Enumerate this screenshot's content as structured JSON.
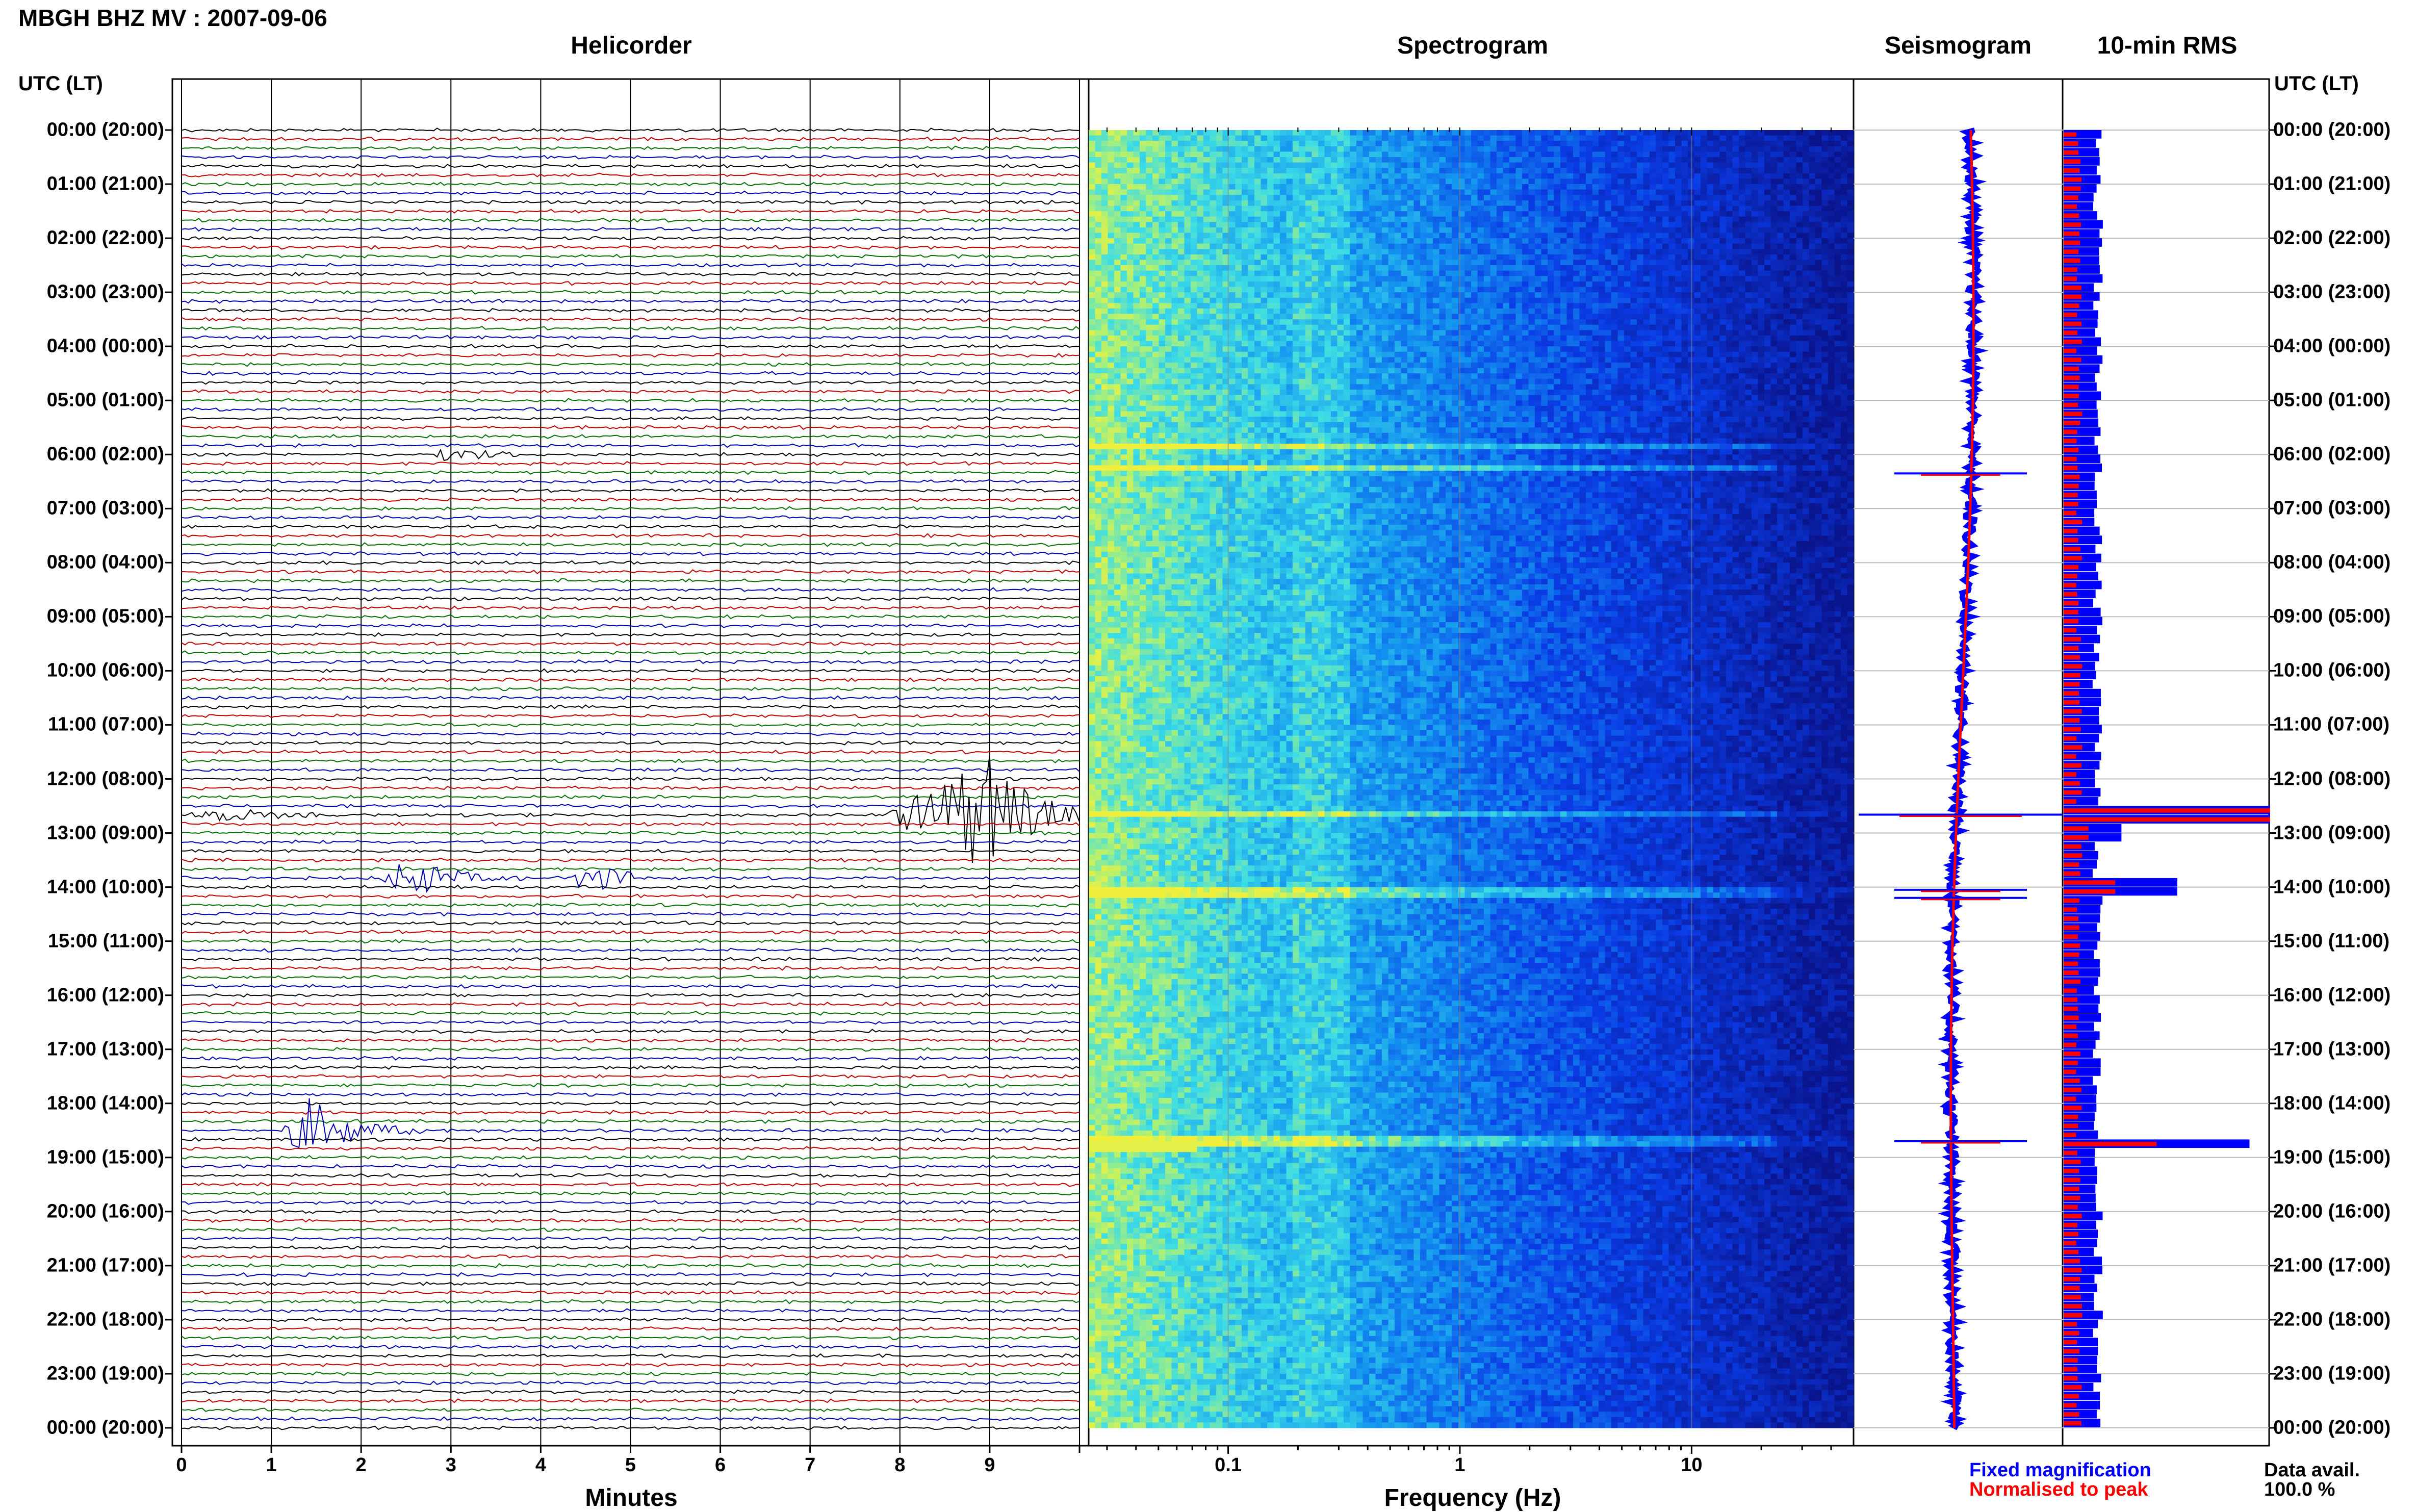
{
  "title": "MBGH BHZ MV : 2007-09-06",
  "panels": {
    "helicorder": "Helicorder",
    "spectrogram": "Spectrogram",
    "seismogram": "Seismogram",
    "rms": "10-min RMS"
  },
  "utc_header": "UTC (LT)",
  "time_labels": [
    "00:00 (20:00)",
    "01:00 (21:00)",
    "02:00 (22:00)",
    "03:00 (23:00)",
    "04:00 (00:00)",
    "05:00 (01:00)",
    "06:00 (02:00)",
    "07:00 (03:00)",
    "08:00 (04:00)",
    "09:00 (05:00)",
    "10:00 (06:00)",
    "11:00 (07:00)",
    "12:00 (08:00)",
    "13:00 (09:00)",
    "14:00 (10:00)",
    "15:00 (11:00)",
    "16:00 (12:00)",
    "17:00 (13:00)",
    "18:00 (14:00)",
    "19:00 (15:00)",
    "20:00 (16:00)",
    "21:00 (17:00)",
    "22:00 (18:00)",
    "23:00 (19:00)",
    "00:00 (20:00)"
  ],
  "minutes_ticks": [
    "0",
    "1",
    "2",
    "3",
    "4",
    "5",
    "6",
    "7",
    "8",
    "9"
  ],
  "minutes_label": "Minutes",
  "freq_ticks": [
    "0.1",
    "1",
    "10"
  ],
  "freq_label": "Frequency (Hz)",
  "legend": {
    "fixed": "Fixed magnification",
    "normalised": "Normalised to peak"
  },
  "data_avail": {
    "label": "Data avail.",
    "value": "100.0 %"
  },
  "colors": {
    "trace_cycle": [
      "#000000",
      "#c00000",
      "#007000",
      "#0000b0"
    ],
    "fixed": "#0000ff",
    "normalised": "#ff0000"
  },
  "chart_data": [
    {
      "type": "line",
      "name": "Helicorder",
      "xlabel": "Minutes",
      "xlim": [
        0,
        10
      ],
      "rows_per_hour": 6,
      "hours": 24,
      "row_minutes": 10,
      "events": [
        {
          "hour": 12,
          "row": 4,
          "start_min": 7.8,
          "end_min": 10.0,
          "peak_min": 9.0,
          "amp": 1.0
        },
        {
          "hour": 12,
          "row": 4,
          "start_min": 0.0,
          "end_min": 10.0,
          "peak_min": 0.5,
          "amp": 0.1
        },
        {
          "hour": 13,
          "row": 5,
          "start_min": 2.2,
          "end_min": 3.8,
          "peak_min": 2.5,
          "amp": 0.35
        },
        {
          "hour": 13,
          "row": 5,
          "start_min": 4.3,
          "end_min": 5.0,
          "peak_min": 4.5,
          "amp": 0.28
        },
        {
          "hour": 18,
          "row": 3,
          "start_min": 1.1,
          "end_min": 2.8,
          "peak_min": 1.4,
          "amp": 0.55
        },
        {
          "hour": 6,
          "row": 0,
          "start_min": 2.8,
          "end_min": 3.8,
          "peak_min": 3.0,
          "amp": 0.12
        }
      ]
    },
    {
      "type": "heatmap",
      "name": "Spectrogram",
      "xlabel": "Frequency (Hz)",
      "xscale": "log",
      "xlim": [
        0.025,
        50
      ],
      "ylim_hours": [
        0,
        24
      ],
      "highlight_hours": [
        12.66,
        14.1,
        18.7,
        6.25,
        5.85
      ]
    },
    {
      "type": "line",
      "name": "Seismogram",
      "ylim_hours": [
        0,
        24
      ],
      "spikes_hours": [
        12.66,
        14.05,
        14.2,
        18.7,
        6.35
      ]
    },
    {
      "type": "bar",
      "name": "10-min RMS",
      "ylim_hours": [
        0,
        24
      ],
      "bins_per_hour": 6,
      "peaks": [
        {
          "hour": 12.66,
          "fixed": 1.0,
          "normalised": 1.0
        },
        {
          "hour": 14.0,
          "fixed": 0.55,
          "normalised": 0.25
        },
        {
          "hour": 18.7,
          "fixed": 0.9,
          "normalised": 0.45
        },
        {
          "hour": 13.0,
          "fixed": 0.28,
          "normalised": 0.12
        }
      ]
    }
  ]
}
